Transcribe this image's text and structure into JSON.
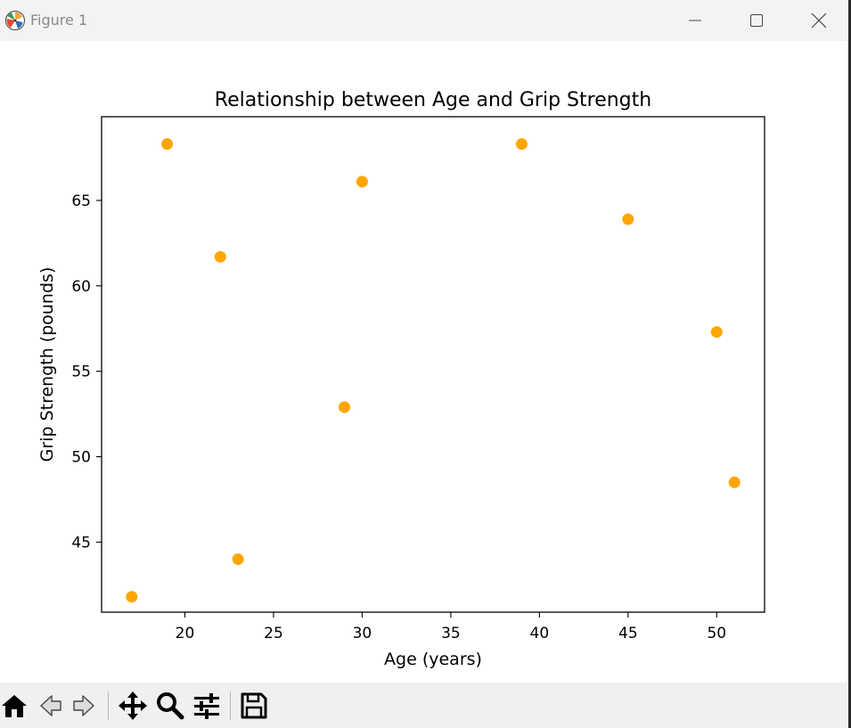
{
  "window": {
    "title": "Figure 1",
    "icon": "matplotlib-logo-icon",
    "controls": [
      "minimize-icon",
      "maximize-icon",
      "close-icon"
    ]
  },
  "chart_data": {
    "type": "scatter",
    "title": "Relationship between Age and Grip Strength",
    "xlabel": "Age (years)",
    "ylabel": "Grip Strength (pounds)",
    "xlim": [
      15.3,
      52.7
    ],
    "ylim": [
      40.9,
      69.9
    ],
    "xticks": [
      20,
      25,
      30,
      35,
      40,
      45,
      50
    ],
    "yticks": [
      45,
      50,
      55,
      60,
      65
    ],
    "marker_color": "#ffa500",
    "grid": false,
    "legend": "none",
    "x": [
      17,
      19,
      22,
      23,
      29,
      30,
      39,
      45,
      50,
      51
    ],
    "y": [
      41.8,
      68.3,
      61.7,
      44.0,
      52.9,
      66.1,
      68.3,
      63.9,
      57.3,
      48.5
    ]
  },
  "toolbar": {
    "items": [
      "home-icon",
      "back-arrow-icon",
      "forward-arrow-icon",
      "pan-move-icon",
      "zoom-magnifier-icon",
      "configure-subplots-icon",
      "save-disk-icon"
    ]
  }
}
